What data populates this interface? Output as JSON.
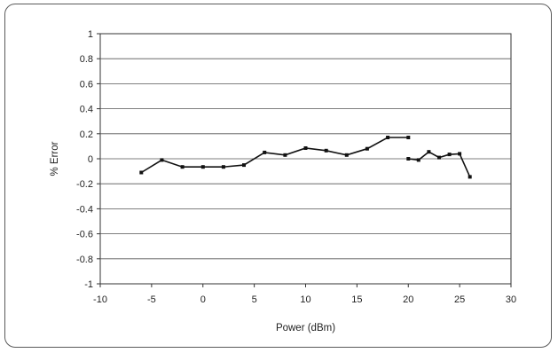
{
  "chart_data": {
    "type": "line",
    "title": "",
    "xlabel": "Power (dBm)",
    "ylabel": "% Error",
    "xlim": [
      -10,
      30
    ],
    "ylim": [
      -1,
      1
    ],
    "x_ticks": [
      "-10",
      "-5",
      "0",
      "5",
      "10",
      "15",
      "20",
      "25",
      "30"
    ],
    "y_ticks": [
      "1",
      "0.8",
      "0.6",
      "0.4",
      "0.2",
      "0",
      "-0.2",
      "-0.4",
      "-0.6",
      "-0.8",
      "-1"
    ],
    "grid": "horizontal",
    "legend": "none",
    "series": [
      {
        "x": [
          -6,
          -4,
          -2,
          0,
          2,
          4,
          6,
          8,
          10,
          12,
          14,
          16,
          18,
          20
        ],
        "y": [
          -0.11,
          -0.01,
          -0.065,
          -0.065,
          -0.065,
          -0.05,
          0.05,
          0.03,
          0.085,
          0.065,
          0.03,
          0.08,
          0.17,
          0.17
        ],
        "color": "#111111"
      },
      {
        "x": [
          20,
          21,
          22,
          23,
          24,
          25,
          26
        ],
        "y": [
          0.0,
          -0.01,
          0.055,
          0.01,
          0.035,
          0.04,
          -0.145
        ],
        "color": "#111111"
      }
    ]
  }
}
